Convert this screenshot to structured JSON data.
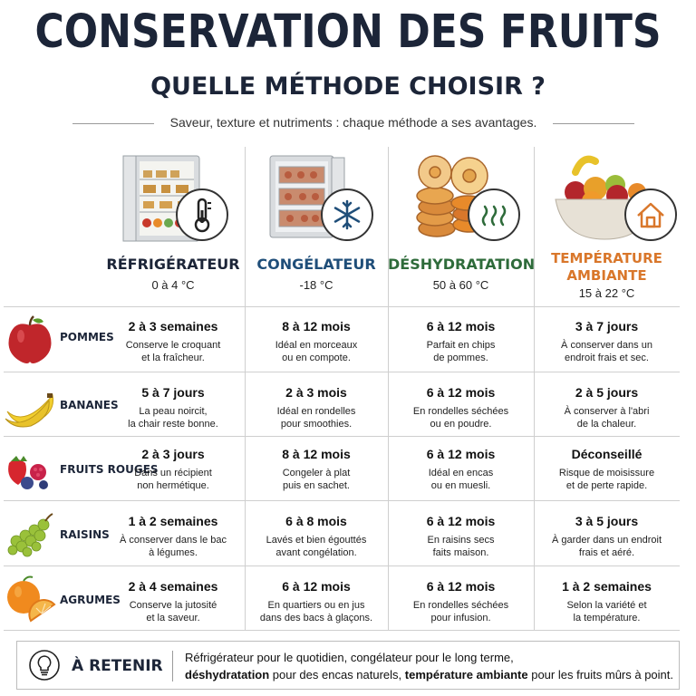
{
  "header": {
    "title": "CONSERVATION DES FRUITS",
    "subtitle": "QUELLE MÉTHODE CHOISIR ?",
    "tagline": "Saveur, texture et nutriments : chaque méthode a ses avantages."
  },
  "methods": [
    {
      "name": "RÉFRIGÉRATEUR",
      "range": "0 à 4 °C",
      "color": "#1c2538",
      "icon": "thermometer-icon"
    },
    {
      "name": "CONGÉLATEUR",
      "range": "-18 °C",
      "color": "#1f4e79",
      "icon": "snowflake-icon"
    },
    {
      "name": "DÉSHYDRATATION",
      "range": "50 à 60 °C",
      "color": "#2e6b3a",
      "icon": "heat-waves-icon"
    },
    {
      "name_line1": "TEMPÉRATURE",
      "name_line2": "AMBIANTE",
      "range": "15 à 22 °C",
      "color": "#d9772b",
      "icon": "house-icon"
    }
  ],
  "fruits": [
    {
      "label": "POMMES",
      "icon": "apple-icon",
      "cells": [
        {
          "duration": "2 à 3 semaines",
          "note1": "Conserve le croquant",
          "note2": "et la fraîcheur."
        },
        {
          "duration": "8 à 12 mois",
          "note1": "Idéal en morceaux",
          "note2": "ou en compote."
        },
        {
          "duration": "6 à 12 mois",
          "note1": "Parfait en chips",
          "note2": "de pommes."
        },
        {
          "duration": "3 à 7 jours",
          "note1": "À conserver dans un",
          "note2": "endroit frais et sec."
        }
      ]
    },
    {
      "label": "BANANES",
      "icon": "banana-icon",
      "cells": [
        {
          "duration": "5 à 7 jours",
          "note1": "La peau noircit,",
          "note2": "la chair reste bonne."
        },
        {
          "duration": "2 à 3 mois",
          "note1": "Idéal en rondelles",
          "note2": "pour smoothies."
        },
        {
          "duration": "6 à 12 mois",
          "note1": "En rondelles séchées",
          "note2": "ou en poudre."
        },
        {
          "duration": "2 à 5 jours",
          "note1": "À conserver à l'abri",
          "note2": "de la chaleur."
        }
      ]
    },
    {
      "label": "FRUITS ROUGES",
      "icon": "berries-icon",
      "cells": [
        {
          "duration": "2 à 3 jours",
          "note1": "Dans un récipient",
          "note2": "non hermétique."
        },
        {
          "duration": "8 à 12 mois",
          "note1": "Congeler à plat",
          "note2": "puis en sachet."
        },
        {
          "duration": "6 à 12 mois",
          "note1": "Idéal en encas",
          "note2": "ou en muesli."
        },
        {
          "duration": "Déconseillé",
          "note1": "Risque de moisissure",
          "note2": "et de perte rapide."
        }
      ]
    },
    {
      "label": "RAISINS",
      "icon": "grapes-icon",
      "cells": [
        {
          "duration": "1 à 2 semaines",
          "note1": "À conserver dans le bac",
          "note2": "à légumes."
        },
        {
          "duration": "6 à 8 mois",
          "note1": "Lavés et bien égouttés",
          "note2": "avant congélation."
        },
        {
          "duration": "6 à 12 mois",
          "note1": "En raisins secs",
          "note2": "faits maison."
        },
        {
          "duration": "3 à 5 jours",
          "note1": "À garder dans un endroit",
          "note2": "frais et aéré."
        }
      ]
    },
    {
      "label": "AGRUMES",
      "icon": "orange-icon",
      "cells": [
        {
          "duration": "2 à 4 semaines",
          "note1": "Conserve la jutosité",
          "note2": "et la saveur."
        },
        {
          "duration": "6 à 12 mois",
          "note1": "En quartiers ou en jus",
          "note2": "dans des bacs à glaçons."
        },
        {
          "duration": "6 à 12 mois",
          "note1": "En rondelles séchées",
          "note2": "pour infusion."
        },
        {
          "duration": "1 à 2 semaines",
          "note1": "Selon la variété et",
          "note2": "la température."
        }
      ]
    }
  ],
  "footer": {
    "heading": "À RETENIR",
    "line1": "Réfrigérateur pour le quotidien, congélateur pour le long terme,",
    "line2_bold1": "déshydratation",
    "line2_mid": " pour des encas naturels, ",
    "line2_bold2": "température ambiante",
    "line2_end": " pour les fruits mûrs à point."
  }
}
